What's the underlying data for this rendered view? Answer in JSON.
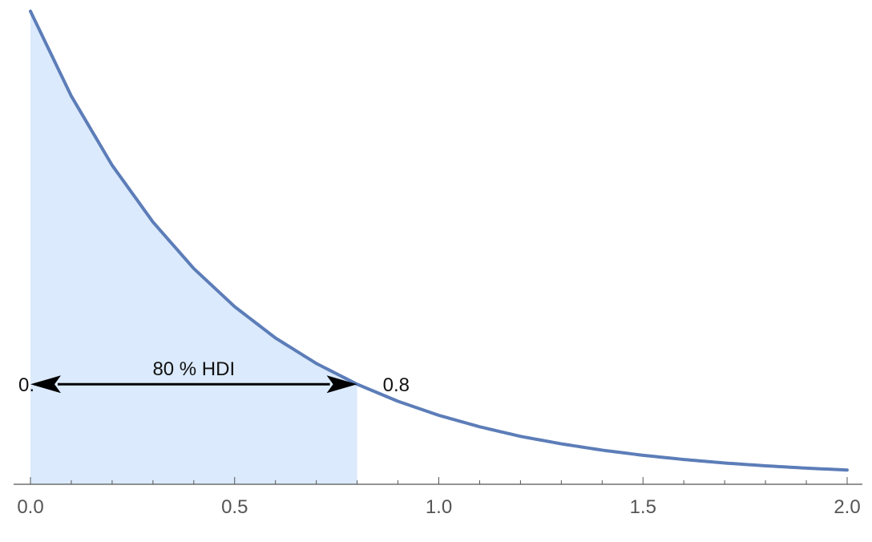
{
  "chart_data": {
    "type": "area",
    "title": "",
    "xlabel": "",
    "ylabel": "",
    "xlim": [
      0.0,
      2.0
    ],
    "x_ticks": [
      {
        "value": 0.0,
        "label": "0.0"
      },
      {
        "value": 0.5,
        "label": "0.5"
      },
      {
        "value": 1.0,
        "label": "1.0"
      },
      {
        "value": 1.5,
        "label": "1.5"
      },
      {
        "value": 2.0,
        "label": "2.0"
      }
    ],
    "minor_tick_step": 0.1,
    "y_axis_shown": false,
    "grid": false,
    "series": [
      {
        "x": [
          0.0,
          0.1,
          0.2,
          0.3,
          0.4,
          0.5,
          0.6,
          0.7,
          0.8,
          0.9,
          1.0,
          1.1,
          1.2,
          1.3,
          1.4,
          1.5,
          1.6,
          1.7,
          1.8,
          1.9,
          2.0
        ],
        "y": [
          2.0,
          1.637,
          1.341,
          1.098,
          0.899,
          0.736,
          0.602,
          0.493,
          0.404,
          0.331,
          0.271,
          0.222,
          0.181,
          0.149,
          0.122,
          0.1,
          0.082,
          0.067,
          0.055,
          0.045,
          0.037
        ]
      }
    ],
    "hdi": {
      "lower": 0.0,
      "upper": 0.8,
      "y_level": 0.404,
      "label": "80 % HDI",
      "lower_label": "0.",
      "upper_label": "0.8"
    },
    "colors": {
      "curve": "#5c7db8",
      "shade": "#dbeafc",
      "arrow": "#000000",
      "axis": "#555555"
    }
  }
}
